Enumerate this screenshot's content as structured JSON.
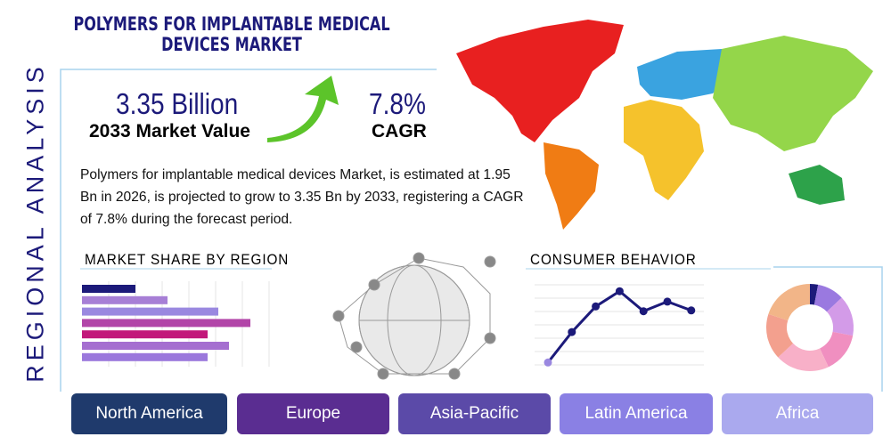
{
  "header": {
    "title": "POLYMERS FOR IMPLANTABLE MEDICAL DEVICES MARKET",
    "side_label": "REGIONAL ANALYSIS"
  },
  "stats": {
    "value": "3.35 Billion",
    "value_label": "2033 Market Value",
    "cagr": "7.8%",
    "cagr_label": "CAGR"
  },
  "description": "Polymers for implantable medical devices Market, is estimated at 1.95 Bn in 2026, is projected to grow to 3.35 Bn by 2033, registering a CAGR of 7.8% during the forecast period.",
  "market_share": {
    "type": "bar",
    "title": "MARKET SHARE BY REGION",
    "values": [
      2,
      3.2,
      5.1,
      6.3,
      4.7,
      5.5,
      4.7
    ],
    "colors": [
      "#1c1a7a",
      "#a77fd6",
      "#9a88e0",
      "#b245a8",
      "#c2187a",
      "#a56fd0",
      "#9b78dc"
    ],
    "xlim": [
      0,
      7
    ]
  },
  "consumer_behavior": {
    "type": "line",
    "title": "CONSUMER BEHAVIOR",
    "values": [
      0.3,
      4.1,
      7.3,
      9.2,
      6.7,
      7.9,
      6.8
    ],
    "color": "#1c1a7a",
    "ylim": [
      0,
      10
    ]
  },
  "donut": {
    "type": "pie",
    "values": [
      3,
      10,
      15,
      15,
      20,
      17,
      20
    ],
    "colors": [
      "#1c1a7a",
      "#9a79e0",
      "#d39be8",
      "#f08fc0",
      "#f8b0c8",
      "#f3a08e",
      "#f2b588"
    ]
  },
  "regions": [
    "North America",
    "Europe",
    "Asia-Pacific",
    "Latin America",
    "Africa"
  ],
  "region_colors": [
    "#1f3a6c",
    "#5a2d91",
    "#5b4aa8",
    "#8a80e4",
    "#aaa9ee"
  ]
}
